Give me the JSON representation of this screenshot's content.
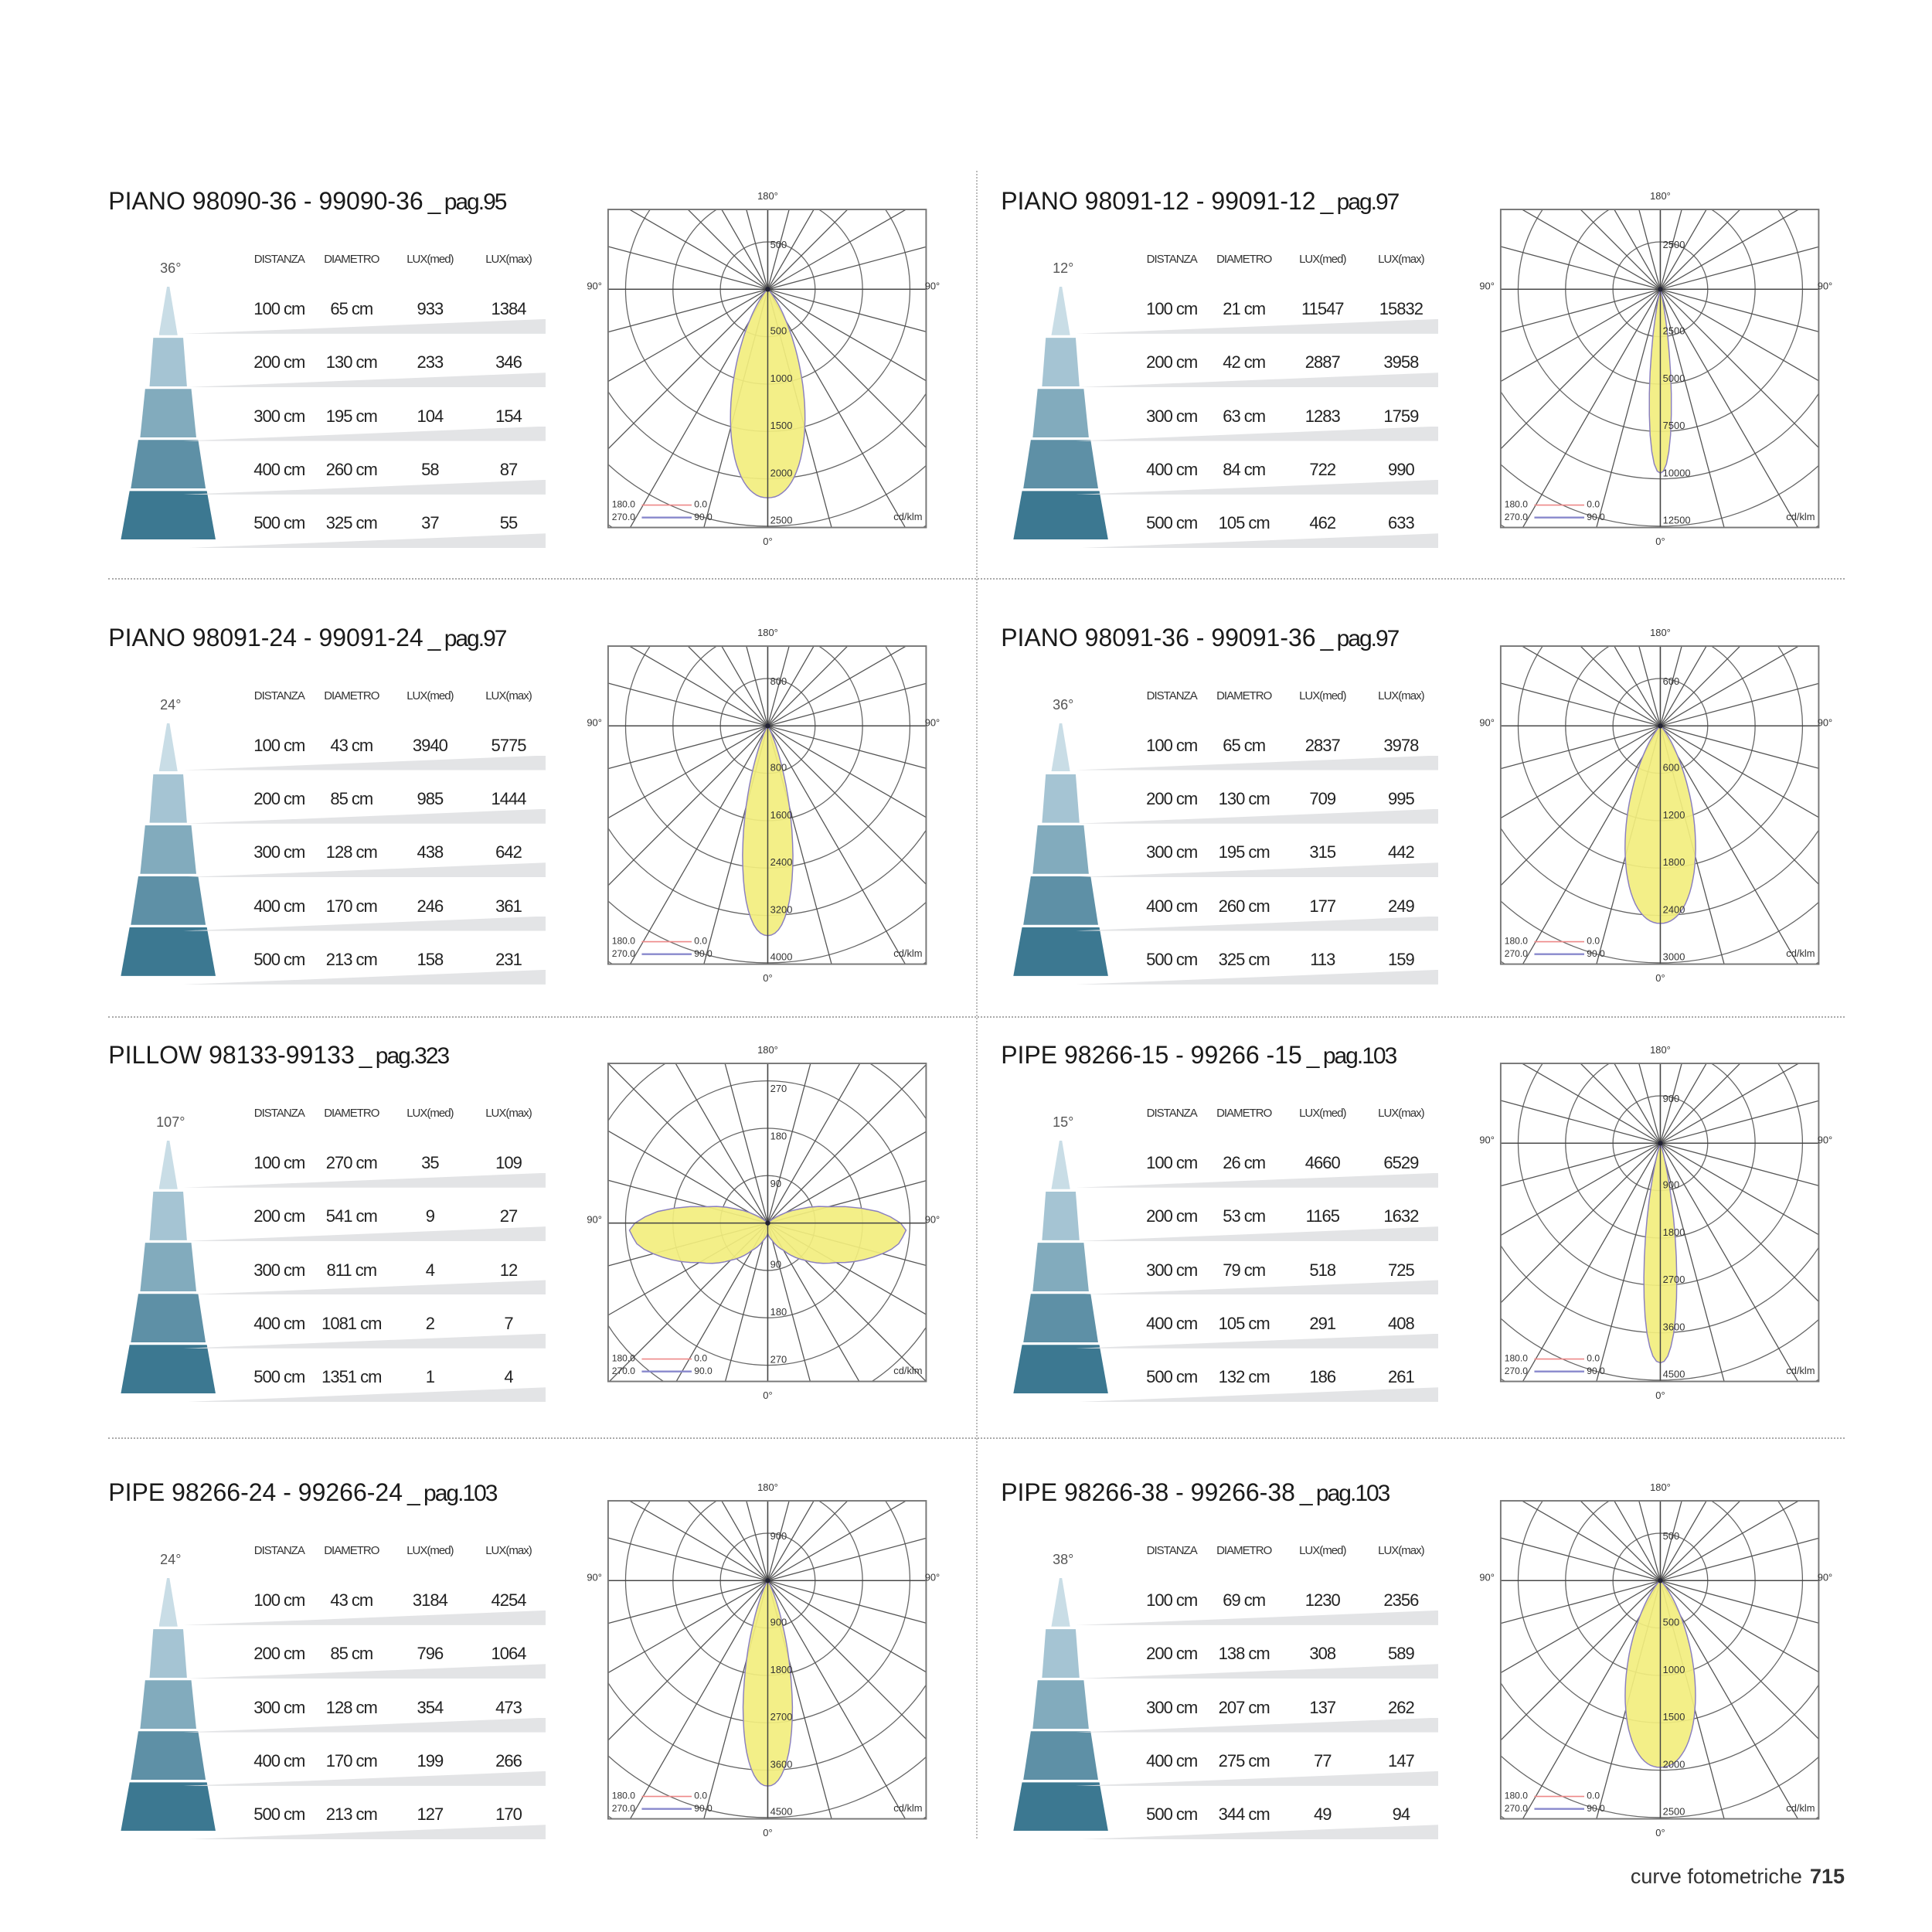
{
  "table_headers": [
    "DISTANZA",
    "DIAMETRO",
    "LUX(med)",
    "LUX(max)"
  ],
  "cone_colors": [
    "#c9dde6",
    "#a5c4d3",
    "#82abbd",
    "#5e90a6",
    "#3c7891"
  ],
  "footer": {
    "section": "curve fotometriche",
    "page_number": "715"
  },
  "panels": [
    {
      "title": "PIANO 98090-36 - 99090-36",
      "page_ref": "_ pag.95",
      "beam_angle": "36°",
      "rows": [
        [
          "100 cm",
          "65 cm",
          "933",
          "1384"
        ],
        [
          "200 cm",
          "130 cm",
          "233",
          "346"
        ],
        [
          "300 cm",
          "195 cm",
          "104",
          "154"
        ],
        [
          "400 cm",
          "260 cm",
          "58",
          "87"
        ],
        [
          "500 cm",
          "325 cm",
          "37",
          "55"
        ]
      ]
    },
    {
      "title": "PIANO 98091-12 - 99091-12",
      "page_ref": "_ pag.97",
      "beam_angle": "12°",
      "rows": [
        [
          "100 cm",
          "21 cm",
          "11547",
          "15832"
        ],
        [
          "200 cm",
          "42 cm",
          "2887",
          "3958"
        ],
        [
          "300 cm",
          "63 cm",
          "1283",
          "1759"
        ],
        [
          "400 cm",
          "84 cm",
          "722",
          "990"
        ],
        [
          "500 cm",
          "105 cm",
          "462",
          "633"
        ]
      ]
    },
    {
      "title": "PIANO 98091-24 - 99091-24",
      "page_ref": "_ pag.97",
      "beam_angle": "24°",
      "rows": [
        [
          "100 cm",
          "43 cm",
          "3940",
          "5775"
        ],
        [
          "200 cm",
          "85 cm",
          "985",
          "1444"
        ],
        [
          "300 cm",
          "128 cm",
          "438",
          "642"
        ],
        [
          "400 cm",
          "170 cm",
          "246",
          "361"
        ],
        [
          "500 cm",
          "213 cm",
          "158",
          "231"
        ]
      ]
    },
    {
      "title": "PIANO 98091-36 - 99091-36",
      "page_ref": "_ pag.97",
      "beam_angle": "36°",
      "rows": [
        [
          "100 cm",
          "65 cm",
          "2837",
          "3978"
        ],
        [
          "200 cm",
          "130 cm",
          "709",
          "995"
        ],
        [
          "300 cm",
          "195 cm",
          "315",
          "442"
        ],
        [
          "400 cm",
          "260 cm",
          "177",
          "249"
        ],
        [
          "500 cm",
          "325 cm",
          "113",
          "159"
        ]
      ]
    },
    {
      "title": "PILLOW 98133-99133",
      "page_ref": "_ pag.323",
      "beam_angle": "107°",
      "rows": [
        [
          "100 cm",
          "270 cm",
          "35",
          "109"
        ],
        [
          "200 cm",
          "541 cm",
          "9",
          "27"
        ],
        [
          "300 cm",
          "811 cm",
          "4",
          "12"
        ],
        [
          "400 cm",
          "1081 cm",
          "2",
          "7"
        ],
        [
          "500 cm",
          "1351 cm",
          "1",
          "4"
        ]
      ]
    },
    {
      "title": "PIPE 98266-15 - 99266 -15",
      "page_ref": "_ pag.103",
      "beam_angle": "15°",
      "rows": [
        [
          "100 cm",
          "26 cm",
          "4660",
          "6529"
        ],
        [
          "200 cm",
          "53 cm",
          "1165",
          "1632"
        ],
        [
          "300 cm",
          "79 cm",
          "518",
          "725"
        ],
        [
          "400 cm",
          "105 cm",
          "291",
          "408"
        ],
        [
          "500 cm",
          "132 cm",
          "186",
          "261"
        ]
      ]
    },
    {
      "title": "PIPE 98266-24 - 99266-24",
      "page_ref": "_ pag.103",
      "beam_angle": "24°",
      "rows": [
        [
          "100 cm",
          "43 cm",
          "3184",
          "4254"
        ],
        [
          "200 cm",
          "85 cm",
          "796",
          "1064"
        ],
        [
          "300 cm",
          "128 cm",
          "354",
          "473"
        ],
        [
          "400 cm",
          "170 cm",
          "199",
          "266"
        ],
        [
          "500 cm",
          "213 cm",
          "127",
          "170"
        ]
      ]
    },
    {
      "title": "PIPE 98266-38 - 99266-38",
      "page_ref": "_ pag.103",
      "beam_angle": "38°",
      "rows": [
        [
          "100 cm",
          "69 cm",
          "1230",
          "2356"
        ],
        [
          "200 cm",
          "138 cm",
          "308",
          "589"
        ],
        [
          "300 cm",
          "207 cm",
          "137",
          "262"
        ],
        [
          "400 cm",
          "275 cm",
          "77",
          "147"
        ],
        [
          "500 cm",
          "344 cm",
          "49",
          "94"
        ]
      ]
    }
  ],
  "chart_data": [
    {
      "type": "polar",
      "unit": "cd/klm",
      "angle_labels": [
        "180°",
        "0°",
        "90°",
        "90°"
      ],
      "legend": [
        [
          "180.0",
          "0.0"
        ],
        [
          "270.0",
          "90.0"
        ]
      ],
      "ring_step": 500,
      "ring_labels": [
        "500",
        "1000",
        "1500",
        "2000",
        "2500"
      ],
      "beam_angle_deg": 36,
      "peak_cd": 2200,
      "lobe": "narrow"
    },
    {
      "type": "polar",
      "unit": "cd/klm",
      "angle_labels": [
        "180°",
        "0°",
        "90°",
        "90°"
      ],
      "legend": [
        [
          "180.0",
          "0.0"
        ],
        [
          "270.0",
          "90.0"
        ]
      ],
      "ring_step": 2500,
      "ring_labels": [
        "2500",
        "5000",
        "7500",
        "10000",
        "12500"
      ],
      "beam_angle_deg": 12,
      "peak_cd": 9700,
      "lobe": "narrow"
    },
    {
      "type": "polar",
      "unit": "cd/klm",
      "angle_labels": [
        "180°",
        "0°",
        "90°",
        "90°"
      ],
      "legend": [
        [
          "180.0",
          "0.0"
        ],
        [
          "270.0",
          "90.0"
        ]
      ],
      "ring_step": 800,
      "ring_labels": [
        "800",
        "1600",
        "2400",
        "3200",
        "4000"
      ],
      "beam_angle_deg": 24,
      "peak_cd": 3540,
      "lobe": "narrow"
    },
    {
      "type": "polar",
      "unit": "cd/klm",
      "angle_labels": [
        "180°",
        "0°",
        "90°",
        "90°"
      ],
      "legend": [
        [
          "180.0",
          "0.0"
        ],
        [
          "270.0",
          "90.0"
        ]
      ],
      "ring_step": 600,
      "ring_labels": [
        "600",
        "1200",
        "1800",
        "2400",
        "3000"
      ],
      "beam_angle_deg": 36,
      "peak_cd": 2500,
      "lobe": "narrow"
    },
    {
      "type": "polar",
      "unit": "cd/klm",
      "angle_labels": [
        "180°",
        "0°",
        "90°",
        "90°"
      ],
      "legend": [
        [
          "180.0",
          "0.0"
        ],
        [
          "270.0",
          "90.0"
        ]
      ],
      "ring_step": 90,
      "ring_labels": [
        "90",
        "180",
        "270"
      ],
      "beam_angle_deg": 107,
      "lobe": "batwing",
      "intensity": [
        [
          0,
          20
        ],
        [
          15,
          35
        ],
        [
          30,
          60
        ],
        [
          45,
          100
        ],
        [
          60,
          150
        ],
        [
          70,
          200
        ],
        [
          80,
          250
        ],
        [
          88,
          265
        ],
        [
          95,
          220
        ],
        [
          105,
          120
        ],
        [
          115,
          60
        ],
        [
          125,
          20
        ],
        [
          135,
          0
        ]
      ]
    },
    {
      "type": "polar",
      "unit": "cd/klm",
      "angle_labels": [
        "180°",
        "0°",
        "90°",
        "90°"
      ],
      "legend": [
        [
          "180.0",
          "0.0"
        ],
        [
          "270.0",
          "90.0"
        ]
      ],
      "ring_step": 900,
      "ring_labels": [
        "900",
        "1800",
        "2700",
        "3600",
        "4500"
      ],
      "beam_angle_deg": 15,
      "peak_cd": 4170,
      "lobe": "narrow"
    },
    {
      "type": "polar",
      "unit": "cd/klm",
      "angle_labels": [
        "180°",
        "0°",
        "90°",
        "90°"
      ],
      "legend": [
        [
          "180.0",
          "0.0"
        ],
        [
          "270.0",
          "90.0"
        ]
      ],
      "ring_step": 900,
      "ring_labels": [
        "900",
        "1800",
        "2700",
        "3600",
        "4500"
      ],
      "beam_angle_deg": 24,
      "peak_cd": 3900,
      "lobe": "narrow"
    },
    {
      "type": "polar",
      "unit": "cd/klm",
      "angle_labels": [
        "180°",
        "0°",
        "90°",
        "90°"
      ],
      "legend": [
        [
          "180.0",
          "0.0"
        ],
        [
          "270.0",
          "90.0"
        ]
      ],
      "ring_step": 500,
      "ring_labels": [
        "500",
        "1000",
        "1500",
        "2000",
        "2500"
      ],
      "beam_angle_deg": 38,
      "peak_cd": 1970,
      "lobe": "narrow"
    }
  ]
}
